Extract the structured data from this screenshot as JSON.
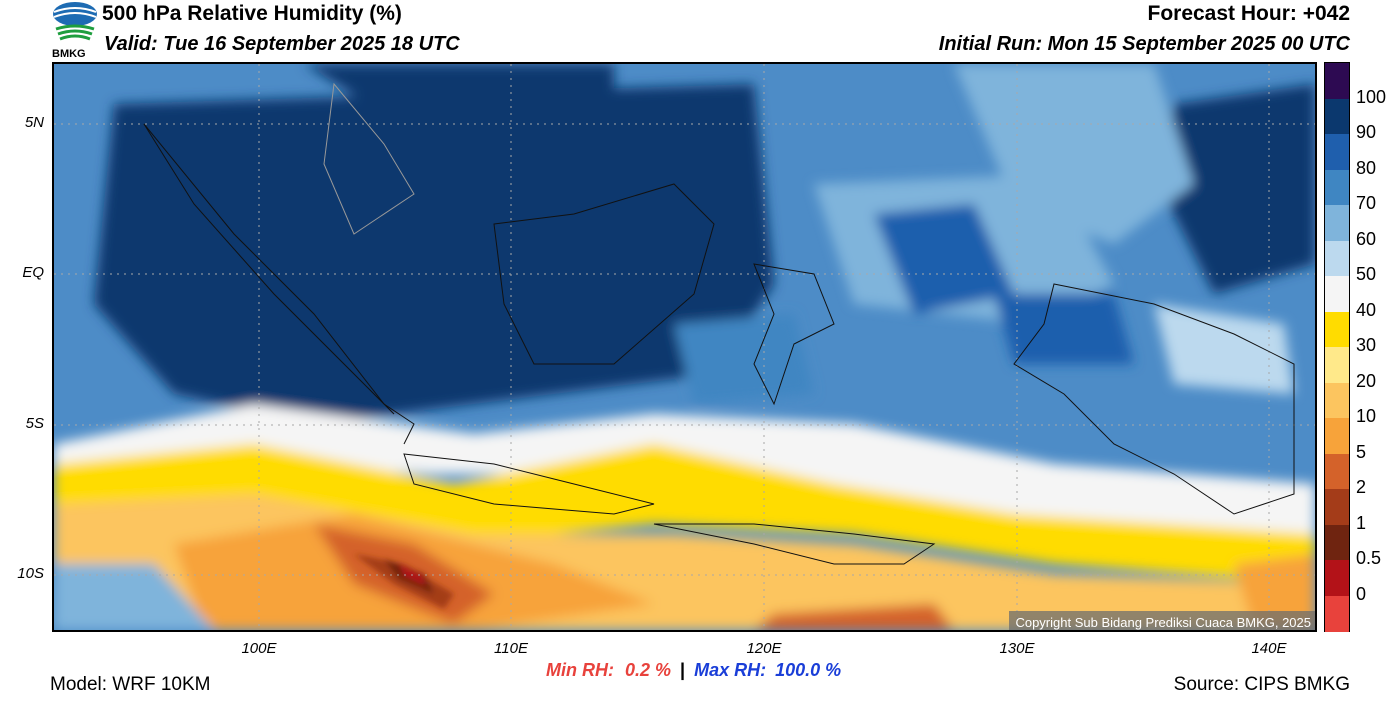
{
  "header": {
    "title": "500 hPa Relative Humidity (%)",
    "valid": "Valid: Tue 16 September 2025 18 UTC",
    "forecast_hour": "Forecast Hour: +042",
    "initial_run": "Initial Run: Mon 15 September 2025 00 UTC",
    "logo_text": "BMKG"
  },
  "axes": {
    "lat_labels": [
      "5N",
      "EQ",
      "5S",
      "10S"
    ],
    "lon_labels": [
      "100E",
      "110E",
      "120E",
      "130E",
      "140E"
    ]
  },
  "colorbar": {
    "labels": [
      "100",
      "90",
      "80",
      "70",
      "60",
      "50",
      "40",
      "30",
      "20",
      "10",
      "5",
      "2",
      "1",
      "0.5",
      "0"
    ],
    "colors": [
      "#2d0a52",
      "#0b386e",
      "#1f5fad",
      "#3f86c2",
      "#7fb4db",
      "#bcd9ee",
      "#f5f5f5",
      "#ffdc00",
      "#ffe98a",
      "#fcc55f",
      "#f7a33a",
      "#d4622a",
      "#a43c19",
      "#6f2410",
      "#b31218",
      "#e8423c"
    ]
  },
  "stats": {
    "min_label": "Min RH:",
    "min_value": "0.2 %",
    "separator": "|",
    "max_label": "Max RH:",
    "max_value": "100.0 %"
  },
  "footer": {
    "model": "Model: WRF 10KM",
    "source": "Source: CIPS BMKG",
    "copyright": "Copyright Sub Bidang Prediksi Cuaca BMKG, 2025"
  }
}
